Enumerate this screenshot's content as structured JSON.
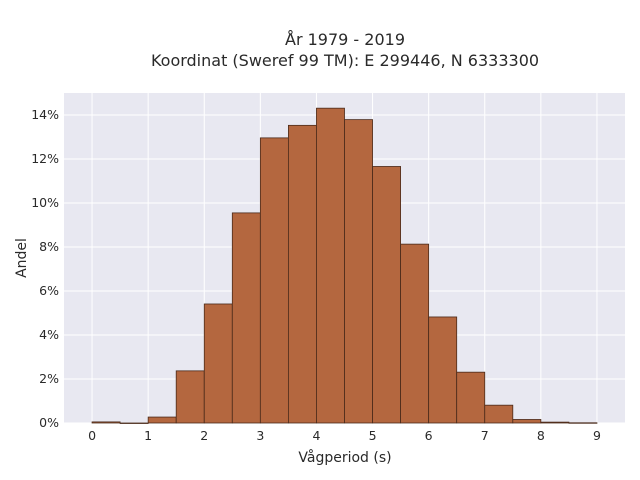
{
  "chart_data": {
    "type": "bar",
    "title_line1": "År 1979 - 2019",
    "title_line2": "Koordinat (Sweref 99 TM): E 299446, N 6333300",
    "xlabel": "Vågperiod (s)",
    "ylabel": "Andel",
    "bin_width": 0.5,
    "bins": [
      {
        "start": 0.0,
        "value": 0.0005
      },
      {
        "start": 0.5,
        "value": 0.0
      },
      {
        "start": 1.0,
        "value": 0.0027
      },
      {
        "start": 1.5,
        "value": 0.0237
      },
      {
        "start": 2.0,
        "value": 0.0541
      },
      {
        "start": 2.5,
        "value": 0.0955
      },
      {
        "start": 3.0,
        "value": 0.1296
      },
      {
        "start": 3.5,
        "value": 0.1353
      },
      {
        "start": 4.0,
        "value": 0.1431
      },
      {
        "start": 4.5,
        "value": 0.1379
      },
      {
        "start": 5.0,
        "value": 0.1166
      },
      {
        "start": 5.5,
        "value": 0.0813
      },
      {
        "start": 6.0,
        "value": 0.0482
      },
      {
        "start": 6.5,
        "value": 0.0231
      },
      {
        "start": 7.0,
        "value": 0.0081
      },
      {
        "start": 7.5,
        "value": 0.0016
      },
      {
        "start": 8.0,
        "value": 0.0004
      },
      {
        "start": 8.5,
        "value": 0.0001
      }
    ],
    "xticks": [
      0,
      1,
      2,
      3,
      4,
      5,
      6,
      7,
      8,
      9
    ],
    "xtick_labels": [
      "0",
      "1",
      "2",
      "3",
      "4",
      "5",
      "6",
      "7",
      "8",
      "9"
    ],
    "yticks": [
      0,
      0.02,
      0.04,
      0.06,
      0.08,
      0.1,
      0.12,
      0.14
    ],
    "ytick_labels": [
      "0%",
      "2%",
      "4%",
      "6%",
      "8%",
      "10%",
      "12%",
      "14%"
    ],
    "xlim": [
      -0.5,
      9.5
    ],
    "ylim": [
      0,
      0.15
    ],
    "grid": true,
    "colors": {
      "bar_fill": "#b4673f",
      "bar_edge": "#4a2a1a",
      "plot_bg": "#e8e8f1",
      "grid": "#ffffff"
    }
  }
}
